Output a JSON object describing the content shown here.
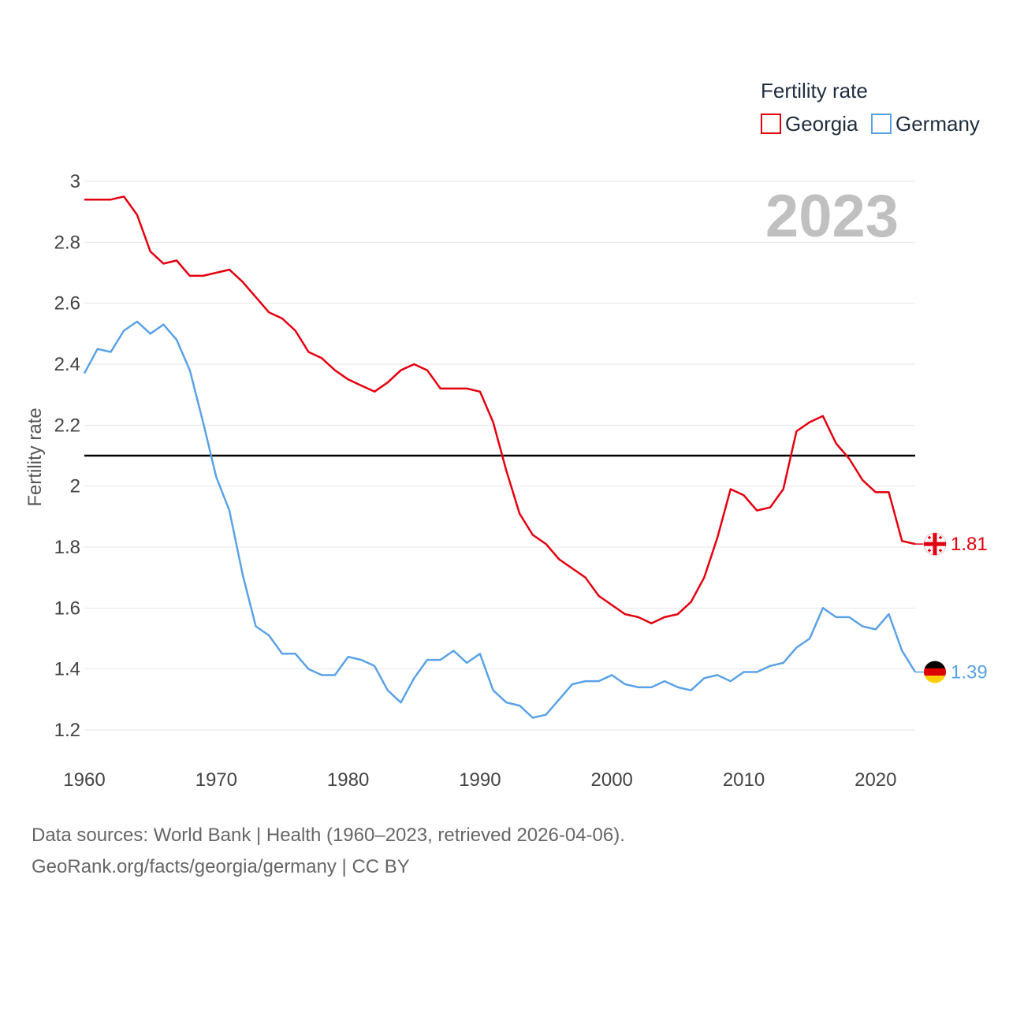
{
  "chart_data": {
    "type": "line",
    "ylabel": "Fertility rate",
    "xlabel": "",
    "ylim": [
      1.1,
      3.0
    ],
    "xlim": [
      1960,
      2023
    ],
    "yticks": [
      "1.2",
      "1.4",
      "1.6",
      "1.8",
      "2",
      "2.2",
      "2.4",
      "2.6",
      "2.8",
      "3"
    ],
    "xticks": [
      "1960",
      "1970",
      "1980",
      "1990",
      "2000",
      "2010",
      "2020"
    ],
    "year_label": "2023",
    "reference_line": 2.1,
    "legend": {
      "title": "Fertility rate",
      "placement": "top-right"
    },
    "x": [
      1960,
      1961,
      1962,
      1963,
      1964,
      1965,
      1966,
      1967,
      1968,
      1969,
      1970,
      1971,
      1972,
      1973,
      1974,
      1975,
      1976,
      1977,
      1978,
      1979,
      1980,
      1981,
      1982,
      1983,
      1984,
      1985,
      1986,
      1987,
      1988,
      1989,
      1990,
      1991,
      1992,
      1993,
      1994,
      1995,
      1996,
      1997,
      1998,
      1999,
      2000,
      2001,
      2002,
      2003,
      2004,
      2005,
      2006,
      2007,
      2008,
      2009,
      2010,
      2011,
      2012,
      2013,
      2014,
      2015,
      2016,
      2017,
      2018,
      2019,
      2020,
      2021,
      2022,
      2023
    ],
    "series": [
      {
        "name": "Georgia",
        "color": "#e3000f",
        "end_label": "1.81",
        "icon": "georgia-flag-icon",
        "values": [
          2.94,
          2.94,
          2.94,
          2.95,
          2.89,
          2.77,
          2.73,
          2.74,
          2.69,
          2.69,
          2.7,
          2.71,
          2.67,
          2.62,
          2.57,
          2.55,
          2.51,
          2.44,
          2.42,
          2.38,
          2.35,
          2.33,
          2.31,
          2.34,
          2.38,
          2.4,
          2.38,
          2.32,
          2.32,
          2.32,
          2.31,
          2.21,
          2.05,
          1.91,
          1.84,
          1.81,
          1.76,
          1.73,
          1.7,
          1.64,
          1.61,
          1.58,
          1.57,
          1.55,
          1.57,
          1.58,
          1.62,
          1.7,
          1.83,
          1.99,
          1.97,
          1.92,
          1.93,
          1.99,
          2.18,
          2.21,
          2.23,
          2.14,
          2.09,
          2.02,
          1.98,
          1.98,
          1.82,
          1.81
        ]
      },
      {
        "name": "Germany",
        "color": "#5aa2e6",
        "end_label": "1.39",
        "icon": "germany-flag-icon",
        "values": [
          2.37,
          2.45,
          2.44,
          2.51,
          2.54,
          2.5,
          2.53,
          2.48,
          2.38,
          2.21,
          2.03,
          1.92,
          1.71,
          1.54,
          1.51,
          1.45,
          1.45,
          1.4,
          1.38,
          1.38,
          1.44,
          1.43,
          1.41,
          1.33,
          1.29,
          1.37,
          1.43,
          1.43,
          1.46,
          1.42,
          1.45,
          1.33,
          1.29,
          1.28,
          1.24,
          1.25,
          1.3,
          1.35,
          1.36,
          1.36,
          1.38,
          1.35,
          1.34,
          1.34,
          1.36,
          1.34,
          1.33,
          1.37,
          1.38,
          1.36,
          1.39,
          1.39,
          1.41,
          1.42,
          1.47,
          1.5,
          1.6,
          1.57,
          1.57,
          1.54,
          1.53,
          1.58,
          1.46,
          1.39
        ]
      }
    ]
  },
  "footer": {
    "source_line": "Data sources: World Bank | Health (1960–2023, retrieved 2026-04-06).",
    "credit_line": "GeoRank.org/facts/georgia/germany | CC BY"
  }
}
